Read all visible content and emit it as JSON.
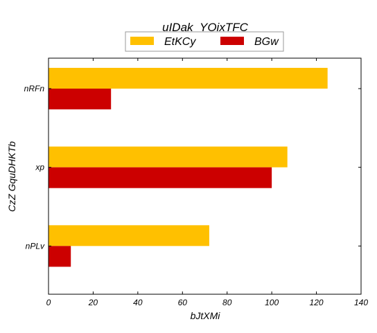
{
  "chart_data": {
    "type": "bar",
    "orientation": "horizontal",
    "title": "uIDak_YOixTFC",
    "xlabel": "bJtXMi",
    "ylabel": "CzZ GquDHKTb",
    "categories": [
      "nRFn",
      "xp",
      "nPLv"
    ],
    "series": [
      {
        "name": "EtKCy",
        "color": "#ffc000",
        "values": [
          125,
          107,
          72
        ]
      },
      {
        "name": "BGw",
        "color": "#cc0000",
        "values": [
          28,
          100,
          10
        ]
      }
    ],
    "xlim": [
      0,
      140
    ],
    "xticks": [
      0,
      20,
      40,
      60,
      80,
      100,
      120,
      140
    ],
    "grid": false,
    "legend_position": "top-center"
  }
}
